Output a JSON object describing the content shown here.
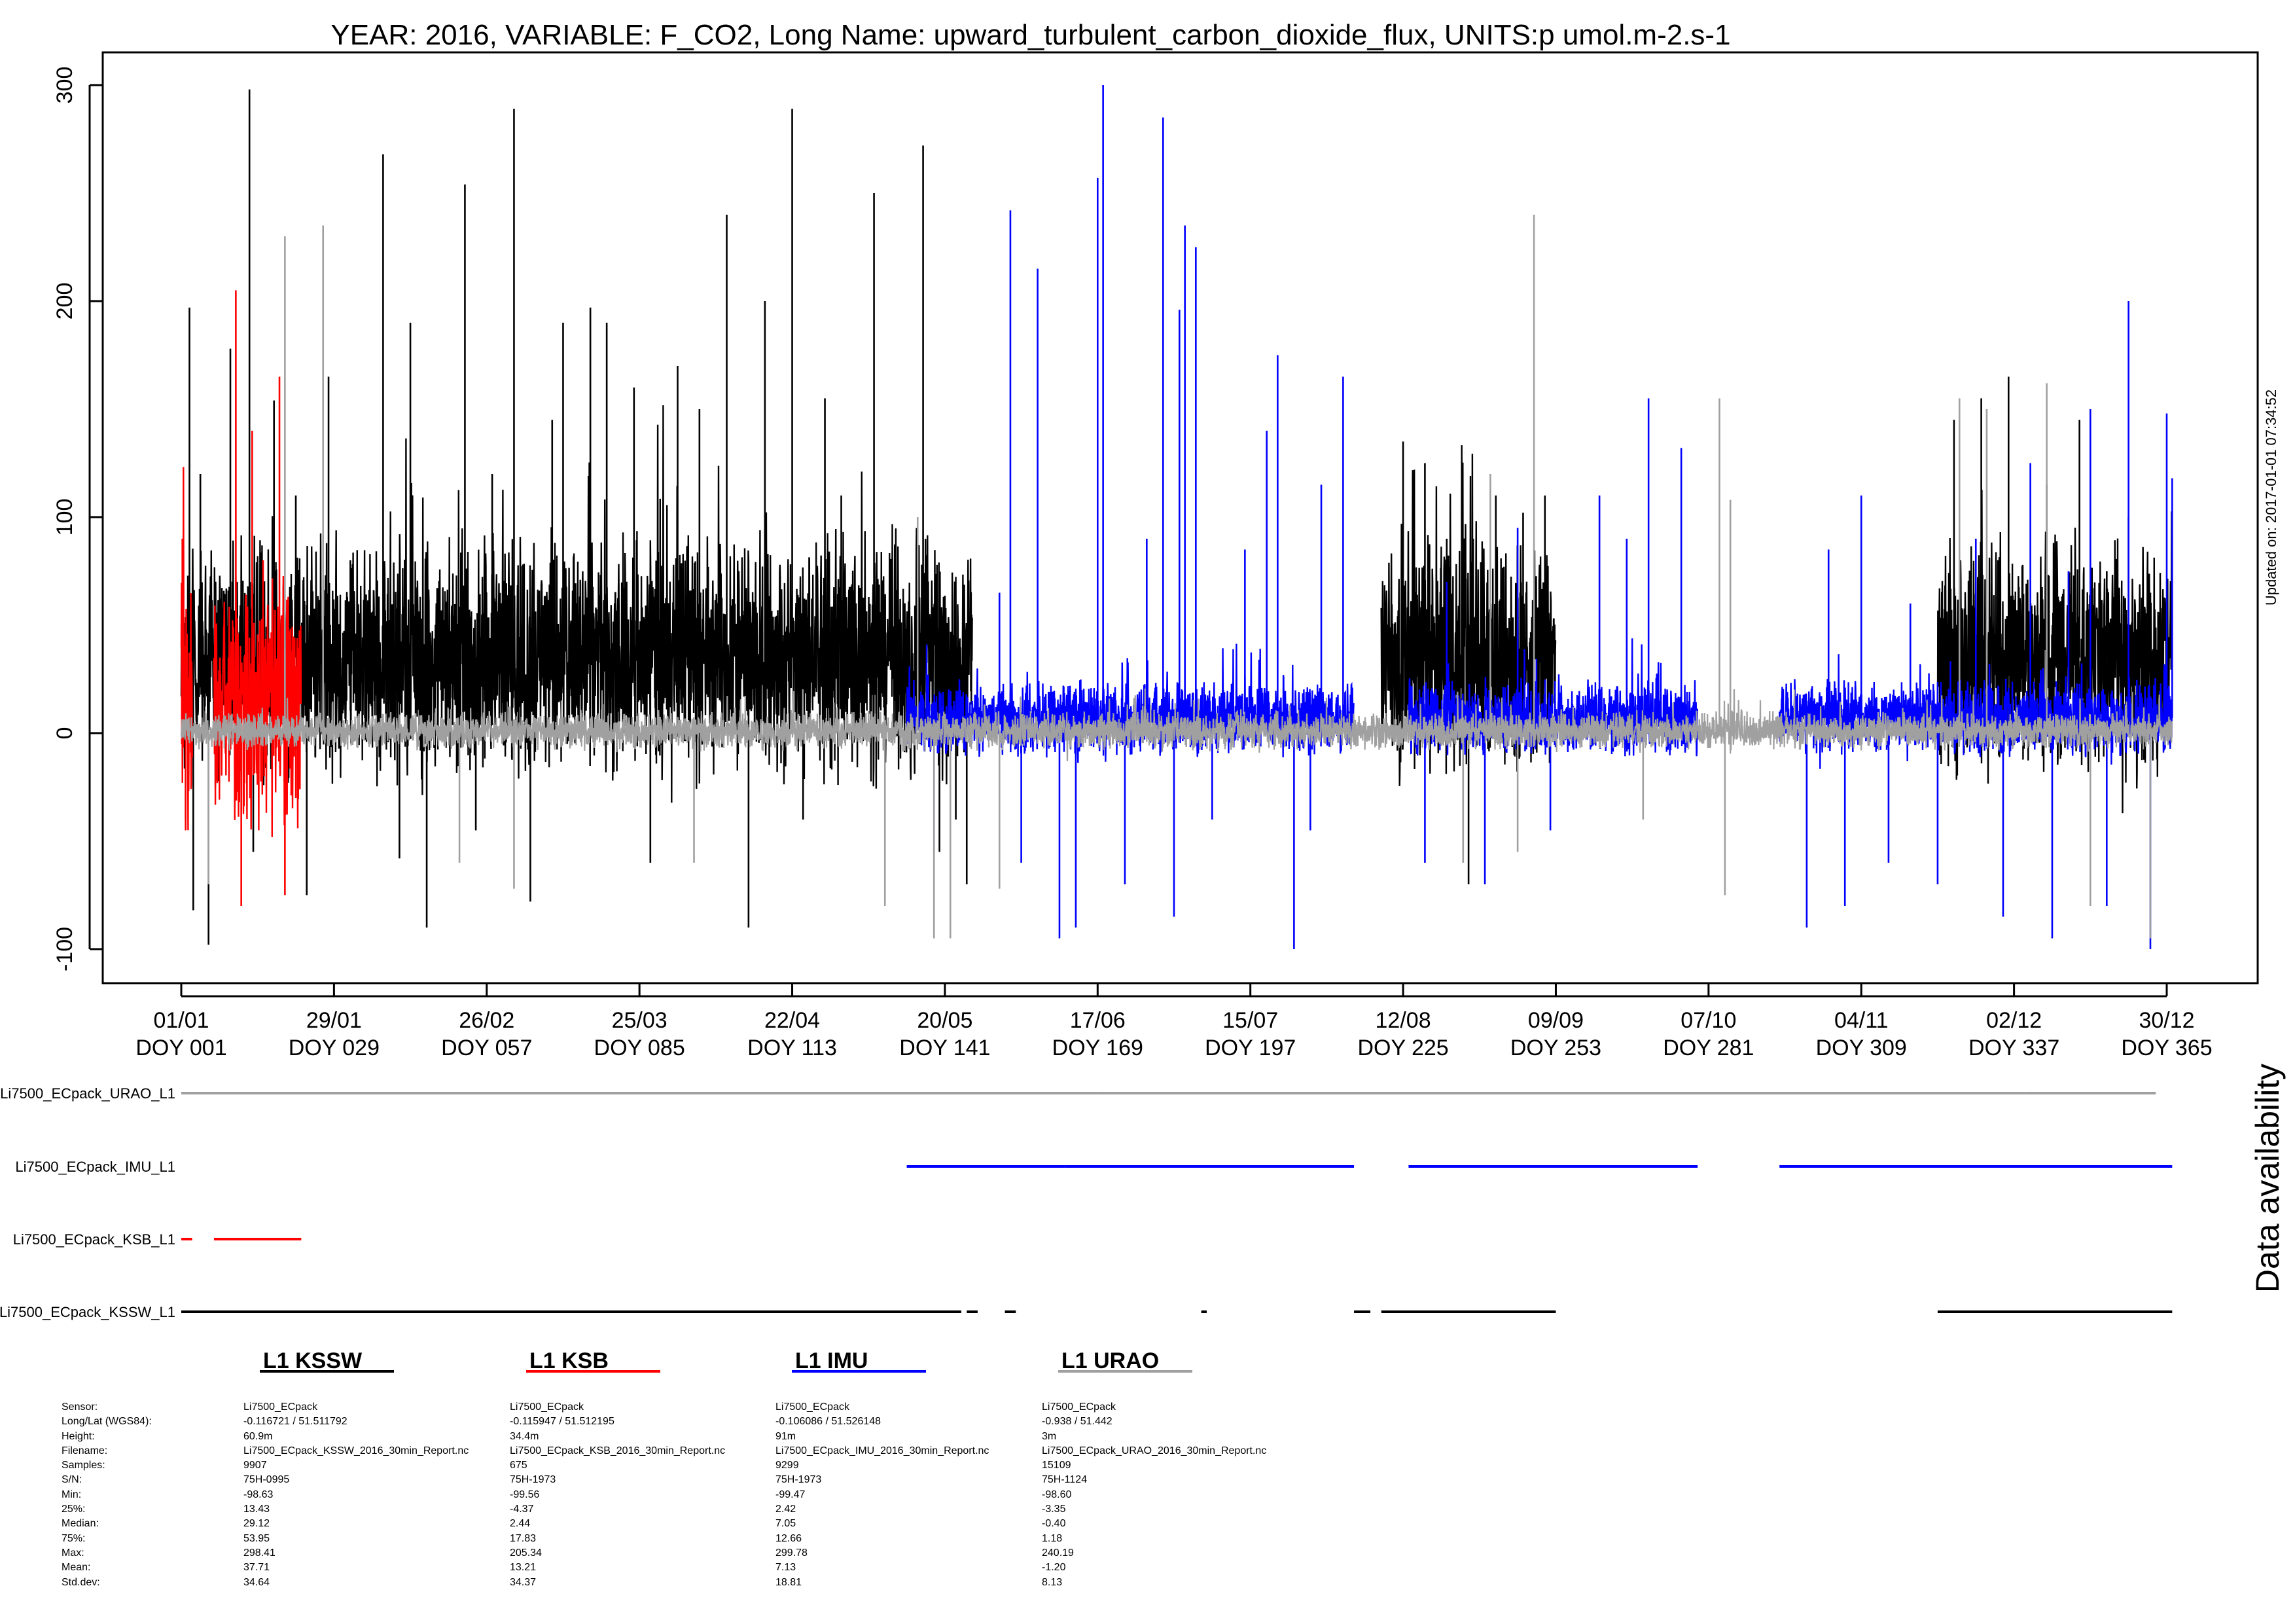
{
  "chart_data": {
    "type": "line",
    "title": "YEAR: 2016, VARIABLE: F_CO2, Long Name: upward_turbulent_carbon_dioxide_flux, UNITS:p umol.m-2.s-1",
    "updated": "Updated on: 2017-01-01 07:34:52",
    "xlabel": "",
    "ylabel": "",
    "xlim": [
      1,
      366
    ],
    "ylim": [
      -105,
      312
    ],
    "y_ticks": [
      "-100",
      "0",
      "100",
      "200",
      "300"
    ],
    "x_ticks": [
      {
        "doy": 1,
        "date": "01/01",
        "label": "DOY 001"
      },
      {
        "doy": 29,
        "date": "29/01",
        "label": "DOY 029"
      },
      {
        "doy": 57,
        "date": "26/02",
        "label": "DOY 057"
      },
      {
        "doy": 85,
        "date": "25/03",
        "label": "DOY 085"
      },
      {
        "doy": 113,
        "date": "22/04",
        "label": "DOY 113"
      },
      {
        "doy": 141,
        "date": "20/05",
        "label": "DOY 141"
      },
      {
        "doy": 169,
        "date": "17/06",
        "label": "DOY 169"
      },
      {
        "doy": 197,
        "date": "15/07",
        "label": "DOY 197"
      },
      {
        "doy": 225,
        "date": "12/08",
        "label": "DOY 225"
      },
      {
        "doy": 253,
        "date": "09/09",
        "label": "DOY 253"
      },
      {
        "doy": 281,
        "date": "07/10",
        "label": "DOY 281"
      },
      {
        "doy": 309,
        "date": "04/11",
        "label": "DOY 309"
      },
      {
        "doy": 337,
        "date": "02/12",
        "label": "DOY 337"
      },
      {
        "doy": 365,
        "date": "30/12",
        "label": "DOY 365"
      }
    ],
    "series": [
      {
        "name": "L1 KSSW",
        "color": "#000000",
        "segments": [
          [
            1,
            146
          ],
          [
            221,
            253
          ],
          [
            323,
            366
          ]
        ],
        "base": 35,
        "spread": 45,
        "low": -98.63,
        "high": 298.41,
        "spikes": [
          [
            1.8,
            -40
          ],
          [
            2.5,
            197
          ],
          [
            3.2,
            -82
          ],
          [
            4.5,
            120
          ],
          [
            6,
            -98
          ],
          [
            10,
            178
          ],
          [
            13.5,
            298
          ],
          [
            14.2,
            -55
          ],
          [
            18,
            154
          ],
          [
            22,
            110
          ],
          [
            24,
            -75
          ],
          [
            28,
            165
          ],
          [
            32,
            80
          ],
          [
            38,
            268
          ],
          [
            41,
            -58
          ],
          [
            43,
            190
          ],
          [
            46,
            -90
          ],
          [
            53,
            254
          ],
          [
            55,
            -45
          ],
          [
            58,
            120
          ],
          [
            62,
            289
          ],
          [
            65,
            -78
          ],
          [
            69,
            145
          ],
          [
            71,
            190
          ],
          [
            76,
            197
          ],
          [
            79,
            190
          ],
          [
            84,
            160
          ],
          [
            87,
            -60
          ],
          [
            92,
            170
          ],
          [
            96,
            150
          ],
          [
            101,
            240
          ],
          [
            105,
            -90
          ],
          [
            108,
            200
          ],
          [
            113,
            289
          ],
          [
            115,
            -40
          ],
          [
            119,
            155
          ],
          [
            122,
            110
          ],
          [
            128,
            250
          ],
          [
            132,
            60
          ],
          [
            137,
            272
          ],
          [
            140,
            -55
          ],
          [
            143,
            -40
          ],
          [
            145,
            -70
          ],
          [
            225,
            135
          ],
          [
            229,
            125
          ],
          [
            233,
            90
          ],
          [
            237,
            -70
          ],
          [
            242,
            110
          ],
          [
            247,
            102
          ],
          [
            251,
            110
          ],
          [
            326,
            145
          ],
          [
            331,
            155
          ],
          [
            336,
            165
          ],
          [
            343,
            115
          ],
          [
            349,
            145
          ],
          [
            354,
            75
          ],
          [
            358,
            100
          ],
          [
            362,
            65
          ]
        ]
      },
      {
        "name": "L1 KSB",
        "color": "#ff0000",
        "segments": [
          [
            1,
            3
          ],
          [
            7,
            23
          ]
        ],
        "base": 13,
        "spread": 45,
        "low": -99.56,
        "high": 205.34,
        "spikes": [
          [
            1.2,
            90
          ],
          [
            1.8,
            -45
          ],
          [
            11,
            205
          ],
          [
            12,
            -80
          ],
          [
            14,
            140
          ],
          [
            16,
            80
          ],
          [
            19,
            165
          ],
          [
            20,
            -75
          ],
          [
            22,
            -30
          ]
        ]
      },
      {
        "name": "L1 IMU",
        "color": "#0000ff",
        "segments": [
          [
            134,
            163
          ],
          [
            163,
            216
          ],
          [
            226,
            279
          ],
          [
            294,
            366
          ]
        ],
        "base": 7,
        "spread": 14,
        "low": -99.47,
        "high": 299.78,
        "spikes": [
          [
            139,
            -55
          ],
          [
            151,
            65
          ],
          [
            153,
            242
          ],
          [
            155,
            -60
          ],
          [
            158,
            215
          ],
          [
            162,
            -95
          ],
          [
            165,
            -90
          ],
          [
            169,
            257
          ],
          [
            170,
            300
          ],
          [
            174,
            -70
          ],
          [
            178,
            90
          ],
          [
            181,
            285
          ],
          [
            183,
            -85
          ],
          [
            184,
            196
          ],
          [
            185,
            235
          ],
          [
            187,
            225
          ],
          [
            190,
            -40
          ],
          [
            196,
            85
          ],
          [
            200,
            140
          ],
          [
            202,
            175
          ],
          [
            205,
            -100
          ],
          [
            208,
            -45
          ],
          [
            210,
            115
          ],
          [
            214,
            165
          ],
          [
            229,
            -60
          ],
          [
            233,
            70
          ],
          [
            240,
            -70
          ],
          [
            246,
            95
          ],
          [
            252,
            -45
          ],
          [
            261,
            110
          ],
          [
            266,
            90
          ],
          [
            270,
            155
          ],
          [
            276,
            132
          ],
          [
            299,
            -90
          ],
          [
            303,
            85
          ],
          [
            306,
            -80
          ],
          [
            309,
            110
          ],
          [
            314,
            -60
          ],
          [
            318,
            60
          ],
          [
            323,
            -70
          ],
          [
            330,
            90
          ],
          [
            335,
            -85
          ],
          [
            340,
            125
          ],
          [
            344,
            -95
          ],
          [
            347,
            75
          ],
          [
            351,
            150
          ],
          [
            354,
            -80
          ],
          [
            358,
            200
          ],
          [
            362,
            -100
          ],
          [
            365,
            148
          ],
          [
            366,
            118
          ]
        ]
      },
      {
        "name": "L1 URAO",
        "color": "#a0a0a0",
        "segments": [
          [
            1,
            366
          ]
        ],
        "base": 1,
        "spread": 7,
        "low": -98.6,
        "high": 240.19,
        "spikes": [
          [
            6,
            -70
          ],
          [
            20,
            230
          ],
          [
            27,
            235
          ],
          [
            52,
            -60
          ],
          [
            62,
            -72
          ],
          [
            95,
            -60
          ],
          [
            130,
            -80
          ],
          [
            136,
            100
          ],
          [
            139,
            -95
          ],
          [
            142,
            -95
          ],
          [
            151,
            -72
          ],
          [
            249,
            240
          ],
          [
            241,
            120
          ],
          [
            236,
            -60
          ],
          [
            246,
            -55
          ],
          [
            269,
            -40
          ],
          [
            283,
            155
          ],
          [
            284,
            -75
          ],
          [
            285,
            108
          ],
          [
            327,
            155
          ],
          [
            332,
            150
          ],
          [
            343,
            162
          ],
          [
            351,
            -80
          ],
          [
            362,
            -95
          ]
        ]
      }
    ],
    "availability": {
      "title": "Data availability",
      "rows": [
        {
          "label": "Li7500_ECpack_URAO_L1",
          "color": "#a0a0a0",
          "segments": [
            [
              1,
              169
            ],
            [
              169,
              339
            ],
            [
              339,
              363
            ]
          ]
        },
        {
          "label": "Li7500_ECpack_IMU_L1",
          "color": "#0000ff",
          "segments": [
            [
              134,
              163
            ],
            [
              163,
              216
            ],
            [
              226,
              279
            ],
            [
              294,
              366
            ]
          ]
        },
        {
          "label": "Li7500_ECpack_KSB_L1",
          "color": "#ff0000",
          "segments": [
            [
              1,
              3
            ],
            [
              7,
              23
            ]
          ]
        },
        {
          "label": "Li7500_ECpack_KSSW_L1",
          "color": "#000000",
          "segments": [
            [
              1,
              144
            ],
            [
              145,
              147
            ],
            [
              152,
              154
            ],
            [
              188,
              189
            ],
            [
              216,
              219
            ],
            [
              221,
              253
            ],
            [
              323,
              366
            ]
          ]
        }
      ]
    },
    "stats": {
      "row_labels": [
        "Sensor:",
        "Long/Lat (WGS84):",
        "Height:",
        "Filename:",
        "Samples:",
        "S/N:",
        "Min:",
        "25%:",
        "Median:",
        "75%:",
        "Max:",
        "Mean:",
        "Std.dev:"
      ],
      "columns": [
        {
          "title": "L1 KSSW",
          "color": "#000000",
          "values": [
            "Li7500_ECpack",
            "-0.116721 / 51.511792",
            "60.9m",
            "Li7500_ECpack_KSSW_2016_30min_Report.nc",
            "9907",
            "75H-0995",
            "-98.63",
            "13.43",
            "29.12",
            "53.95",
            "298.41",
            "37.71",
            "34.64"
          ]
        },
        {
          "title": "L1 KSB",
          "color": "#ff0000",
          "values": [
            "Li7500_ECpack",
            "-0.115947 / 51.512195",
            "34.4m",
            "Li7500_ECpack_KSB_2016_30min_Report.nc",
            "675",
            "75H-1973",
            "-99.56",
            "-4.37",
            "2.44",
            "17.83",
            "205.34",
            "13.21",
            "34.37"
          ]
        },
        {
          "title": "L1 IMU",
          "color": "#0000ff",
          "values": [
            "Li7500_ECpack",
            "-0.106086 / 51.526148",
            "91m",
            "Li7500_ECpack_IMU_2016_30min_Report.nc",
            "9299",
            "75H-1973",
            "-99.47",
            "2.42",
            "7.05",
            "12.66",
            "299.78",
            "7.13",
            "18.81"
          ]
        },
        {
          "title": "L1 URAO",
          "color": "#a0a0a0",
          "values": [
            "Li7500_ECpack",
            "-0.938 / 51.442",
            "3m",
            "Li7500_ECpack_URAO_2016_30min_Report.nc",
            "15109",
            "75H-1124",
            "-98.60",
            "-3.35",
            "-0.40",
            "1.18",
            "240.19",
            "-1.20",
            "8.13"
          ]
        }
      ]
    }
  }
}
